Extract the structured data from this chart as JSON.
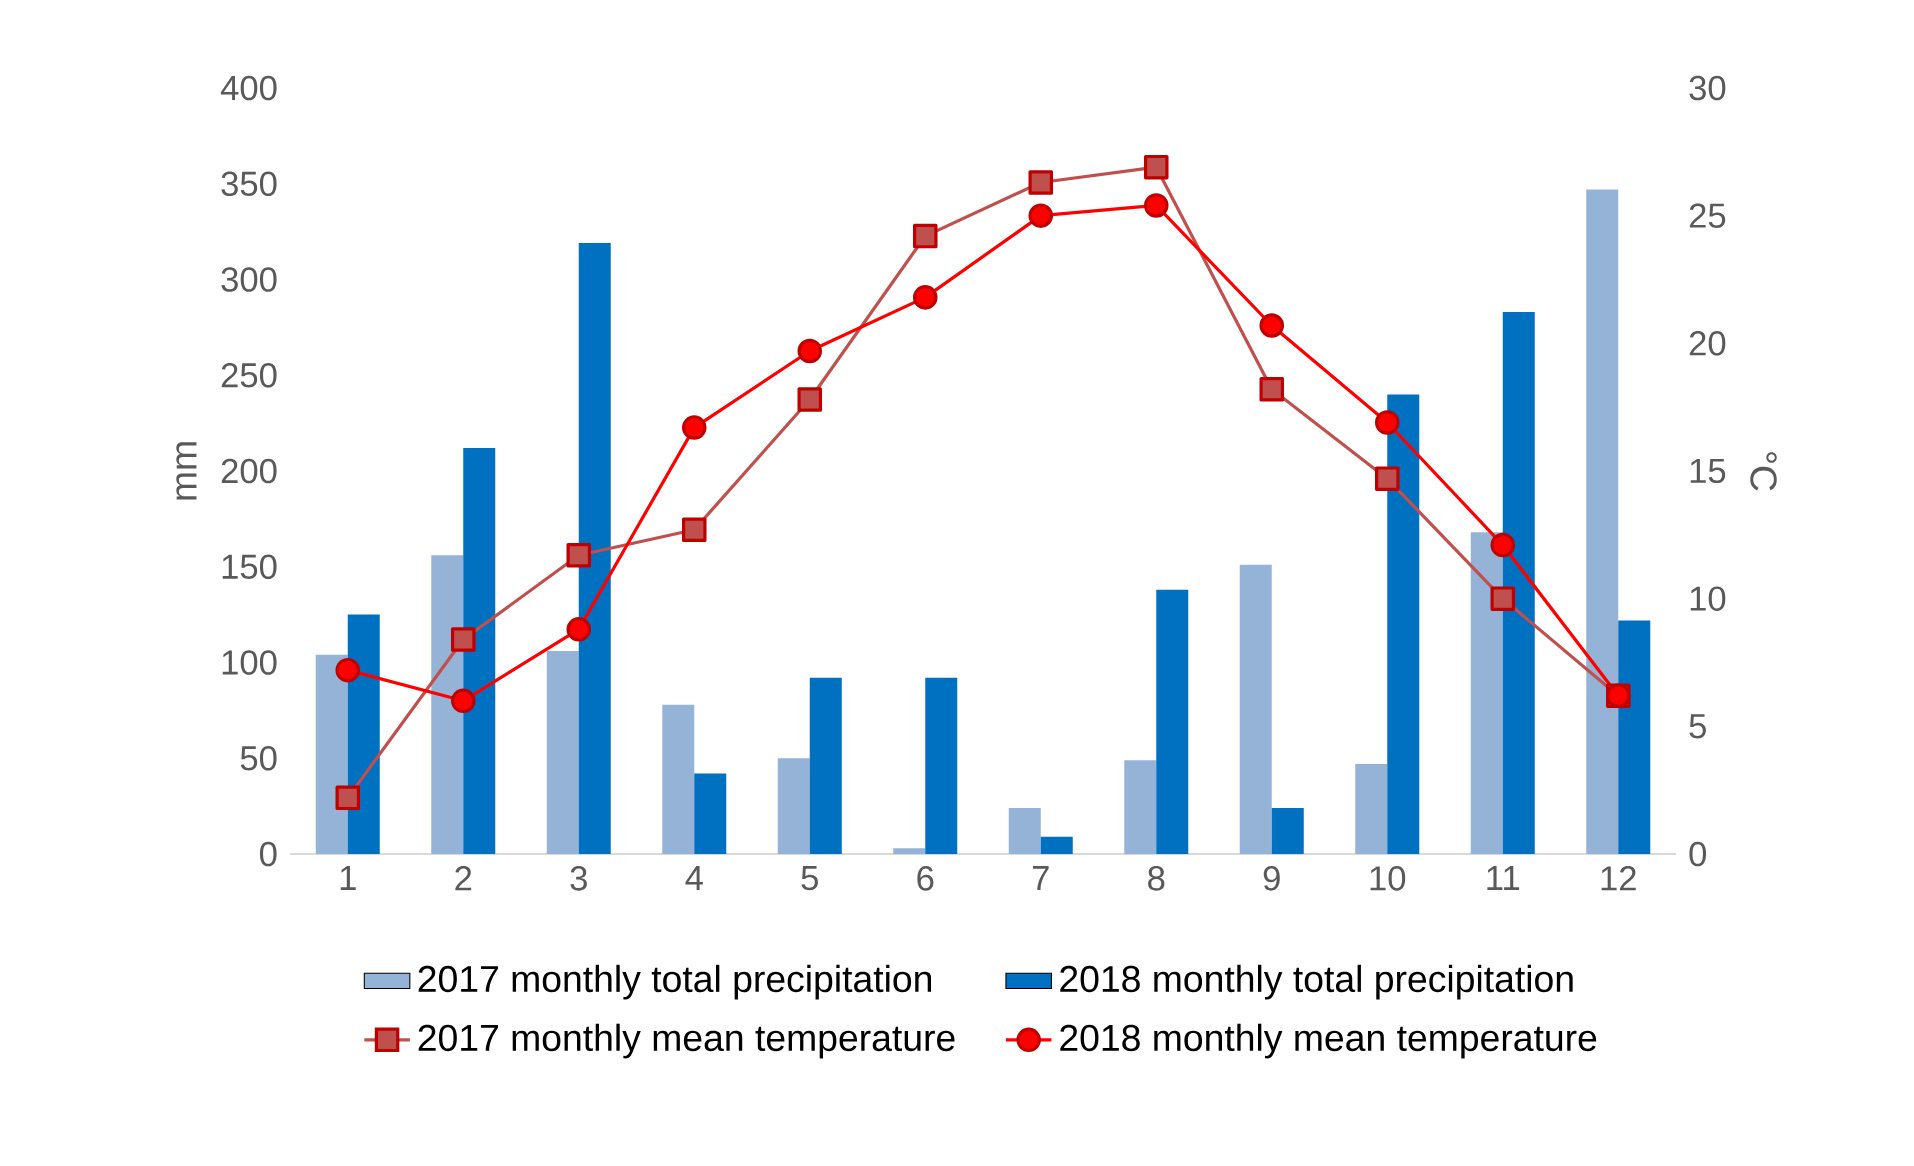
{
  "chart_data": {
    "type": "bar",
    "ylabel": "mm",
    "y2label": "°C",
    "categories": [
      "1",
      "2",
      "3",
      "4",
      "5",
      "6",
      "7",
      "8",
      "9",
      "10",
      "11",
      "12"
    ],
    "ylim": [
      0,
      400
    ],
    "yticks": [
      0,
      50,
      100,
      150,
      200,
      250,
      300,
      350,
      400
    ],
    "y2lim": [
      0,
      30
    ],
    "y2ticks": [
      0,
      5,
      10,
      15,
      20,
      25,
      30
    ],
    "legend": "bottom",
    "grid": false,
    "series": [
      {
        "name": "2017 monthly total  precipitation",
        "color": "#95b3d7",
        "values": [
          104,
          156,
          106,
          78,
          50,
          3,
          24,
          49,
          151,
          47,
          168,
          347
        ]
      },
      {
        "name": "2018 monthly total  precipitation",
        "color": "#0070c0",
        "values": [
          125,
          212,
          319,
          42,
          92,
          92,
          9,
          138,
          24,
          240,
          283,
          122
        ]
      },
      {
        "name": "2017 monthly mean  temperature",
        "type": "line",
        "axis": "y2",
        "marker": "square",
        "color": "#c0504d",
        "values": [
          2.2,
          8.4,
          11.7,
          12.7,
          17.8,
          24.2,
          26.3,
          26.9,
          18.2,
          14.7,
          10.0,
          6.2
        ]
      },
      {
        "name": "2018 monthly mean  temperature",
        "type": "line",
        "axis": "y2",
        "marker": "circle",
        "color": "#ff0000",
        "values": [
          7.2,
          6.0,
          8.8,
          16.7,
          19.7,
          21.8,
          25.0,
          25.4,
          20.7,
          16.9,
          12.1,
          6.2
        ]
      }
    ]
  }
}
